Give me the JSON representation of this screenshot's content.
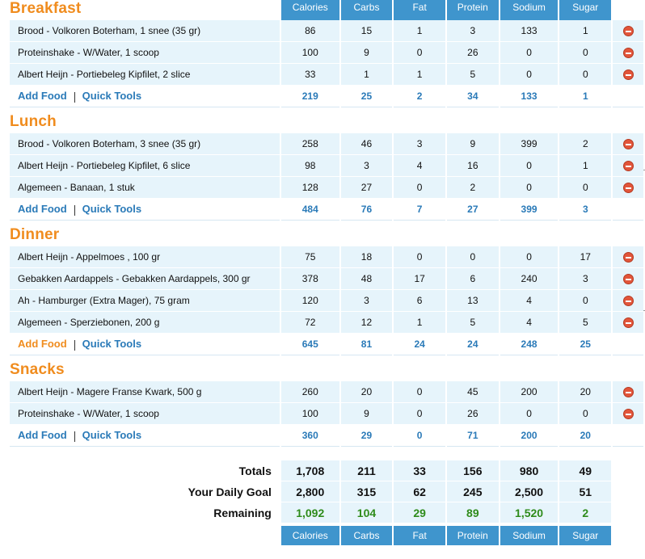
{
  "columns": [
    "Calories",
    "Carbs",
    "Fat",
    "Protein",
    "Sodium",
    "Sugar"
  ],
  "links": {
    "add_food": "Add Food",
    "quick_tools": "Quick Tools"
  },
  "meals": [
    {
      "title": "Breakfast",
      "add_food_highlight": false,
      "items": [
        {
          "name": "Brood - Volkoren Boterham, 1 snee (35 gr)",
          "values": [
            "86",
            "15",
            "1",
            "3",
            "133",
            "1"
          ]
        },
        {
          "name": "Proteinshake - W/Water, 1 scoop",
          "values": [
            "100",
            "9",
            "0",
            "26",
            "0",
            "0"
          ]
        },
        {
          "name": "Albert Heijn - Portiebeleg Kipfilet, 2 slice",
          "values": [
            "33",
            "1",
            "1",
            "5",
            "0",
            "0"
          ]
        }
      ],
      "totals": [
        "219",
        "25",
        "2",
        "34",
        "133",
        "1"
      ]
    },
    {
      "title": "Lunch",
      "add_food_highlight": false,
      "items": [
        {
          "name": "Brood - Volkoren Boterham, 3 snee (35 gr)",
          "values": [
            "258",
            "46",
            "3",
            "9",
            "399",
            "2"
          ]
        },
        {
          "name": "Albert Heijn - Portiebeleg Kipfilet, 6 slice",
          "values": [
            "98",
            "3",
            "4",
            "16",
            "0",
            "1"
          ]
        },
        {
          "name": "Algemeen - Banaan, 1 stuk",
          "values": [
            "128",
            "27",
            "0",
            "2",
            "0",
            "0"
          ]
        }
      ],
      "totals": [
        "484",
        "76",
        "7",
        "27",
        "399",
        "3"
      ]
    },
    {
      "title": "Dinner",
      "add_food_highlight": true,
      "items": [
        {
          "name": "Albert Heijn - Appelmoes , 100 gr",
          "values": [
            "75",
            "18",
            "0",
            "0",
            "0",
            "17"
          ]
        },
        {
          "name": "Gebakken Aardappels - Gebakken Aardappels, 300 gr",
          "values": [
            "378",
            "48",
            "17",
            "6",
            "240",
            "3"
          ]
        },
        {
          "name": "Ah - Hamburger (Extra Mager), 75 gram",
          "values": [
            "120",
            "3",
            "6",
            "13",
            "4",
            "0"
          ]
        },
        {
          "name": "Algemeen - Sperziebonen, 200 g",
          "values": [
            "72",
            "12",
            "1",
            "5",
            "4",
            "5"
          ]
        }
      ],
      "totals": [
        "645",
        "81",
        "24",
        "24",
        "248",
        "25"
      ]
    },
    {
      "title": "Snacks",
      "add_food_highlight": false,
      "items": [
        {
          "name": "Albert Heijn - Magere Franse Kwark, 500 g",
          "values": [
            "260",
            "20",
            "0",
            "45",
            "200",
            "20"
          ]
        },
        {
          "name": "Proteinshake - W/Water, 1 scoop",
          "values": [
            "100",
            "9",
            "0",
            "26",
            "0",
            "0"
          ]
        }
      ],
      "totals": [
        "360",
        "29",
        "0",
        "71",
        "200",
        "20"
      ]
    }
  ],
  "summary": [
    {
      "label": "Totals",
      "values": [
        "1,708",
        "211",
        "33",
        "156",
        "980",
        "49"
      ]
    },
    {
      "label": "Your Daily Goal",
      "values": [
        "2,800",
        "315",
        "62",
        "245",
        "2,500",
        "51"
      ]
    },
    {
      "label": "Remaining",
      "values": [
        "1,092",
        "104",
        "29",
        "89",
        "1,520",
        "2"
      ]
    }
  ],
  "colors": {
    "header_blue": "#3f95cd",
    "meal_orange": "#f08c1e",
    "row_bg": "#e6f4fb",
    "link_blue": "#2a7ab8",
    "remaining_green": "#2e8b1a",
    "delete_red": "#e2553a"
  },
  "icons": {
    "delete": "remove-circle-icon"
  }
}
